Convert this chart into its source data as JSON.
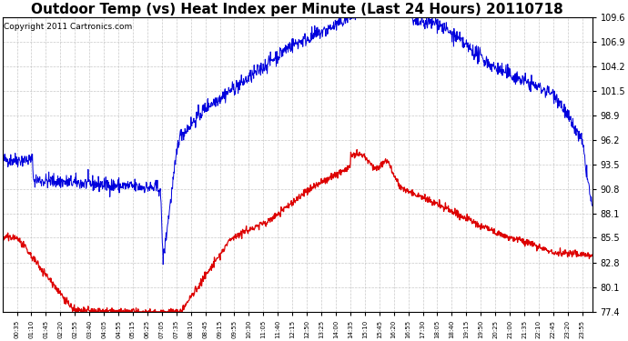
{
  "title": "Outdoor Temp (vs) Heat Index per Minute (Last 24 Hours) 20110718",
  "copyright": "Copyright 2011 Cartronics.com",
  "ylim": [
    77.4,
    109.6
  ],
  "yticks": [
    77.4,
    80.1,
    82.8,
    85.5,
    88.1,
    90.8,
    93.5,
    96.2,
    98.9,
    101.5,
    104.2,
    106.9,
    109.6
  ],
  "xtick_labels": [
    "00:35",
    "01:10",
    "01:45",
    "02:20",
    "02:55",
    "03:40",
    "04:05",
    "04:55",
    "05:15",
    "06:25",
    "07:05",
    "07:35",
    "08:10",
    "08:45",
    "09:15",
    "09:55",
    "10:30",
    "11:05",
    "11:40",
    "12:15",
    "12:50",
    "13:25",
    "14:00",
    "14:35",
    "15:10",
    "15:45",
    "16:20",
    "16:55",
    "17:30",
    "18:05",
    "18:40",
    "19:15",
    "19:50",
    "20:25",
    "21:00",
    "21:35",
    "22:10",
    "22:45",
    "23:20",
    "23:55"
  ],
  "bg_color": "#ffffff",
  "grid_color": "#bbbbbb",
  "line_blue": "#0000dd",
  "line_red": "#dd0000",
  "title_fontsize": 11,
  "copyright_fontsize": 6.5
}
